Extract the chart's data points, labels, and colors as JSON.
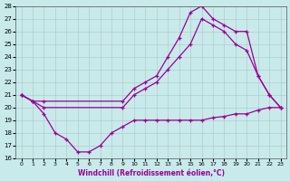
{
  "xlabel": "Windchill (Refroidissement éolien,°C)",
  "xlim": [
    -0.5,
    23.5
  ],
  "ylim": [
    16,
    28
  ],
  "xticks": [
    0,
    1,
    2,
    3,
    4,
    5,
    6,
    7,
    8,
    9,
    10,
    11,
    12,
    13,
    14,
    15,
    16,
    17,
    18,
    19,
    20,
    21,
    22,
    23
  ],
  "yticks": [
    16,
    17,
    18,
    19,
    20,
    21,
    22,
    23,
    24,
    25,
    26,
    27,
    28
  ],
  "bg_color": "#c8eaea",
  "line_color": "#990099",
  "grid_color": "#b0c4c4",
  "line1_x": [
    0,
    1,
    2,
    9,
    10,
    11,
    12,
    13,
    14,
    15,
    16,
    17,
    18,
    19,
    20,
    21,
    22,
    23
  ],
  "line1_y": [
    21,
    20.5,
    20.5,
    20.5,
    21.5,
    22.0,
    22.5,
    24.0,
    25.5,
    27.5,
    28.0,
    27.0,
    26.5,
    26.0,
    26.0,
    22.5,
    21.0,
    20.0
  ],
  "line2_x": [
    0,
    1,
    2,
    9,
    10,
    11,
    12,
    13,
    14,
    15,
    16,
    17,
    18,
    19,
    20,
    21,
    22,
    23
  ],
  "line2_y": [
    21,
    20.5,
    20.0,
    20.0,
    21.0,
    21.5,
    22.0,
    23.0,
    24.0,
    25.0,
    27.0,
    26.5,
    26.0,
    25.0,
    24.5,
    22.5,
    21.0,
    20.0
  ],
  "line3_x": [
    0,
    1,
    2,
    3,
    4,
    5,
    6,
    7,
    8,
    9,
    10,
    11,
    12,
    13,
    14,
    15,
    16,
    17,
    18,
    19,
    20,
    21,
    22,
    23
  ],
  "line3_y": [
    21,
    20.5,
    19.5,
    18.0,
    17.5,
    16.5,
    16.5,
    17.0,
    18.0,
    18.5,
    19.0,
    19.0,
    19.0,
    19.0,
    19.0,
    19.0,
    19.0,
    19.2,
    19.3,
    19.5,
    19.5,
    19.8,
    20.0,
    20.0
  ]
}
